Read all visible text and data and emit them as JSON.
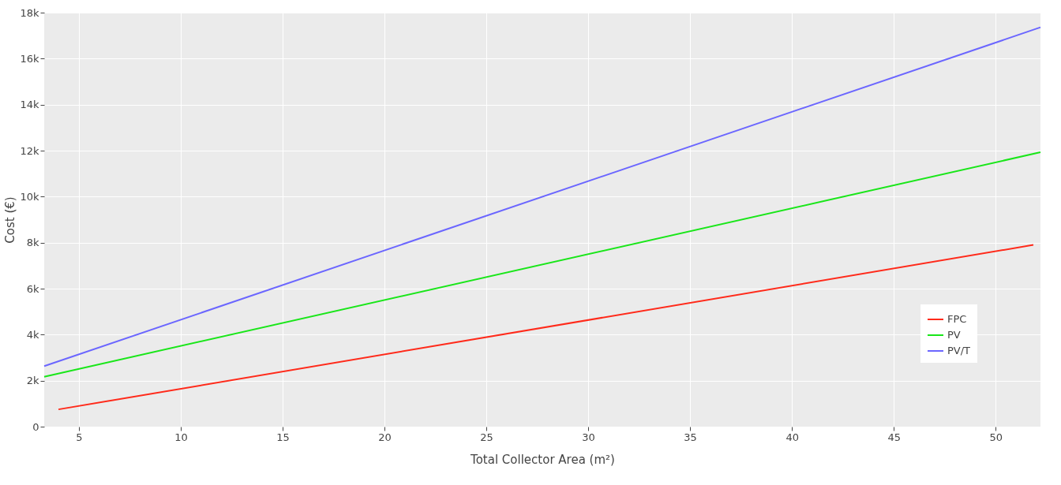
{
  "chart_data": {
    "type": "line",
    "xlabel": "Total Collector Area (m²)",
    "ylabel": "Cost (€)",
    "xlim": [
      3.3,
      52.2
    ],
    "xticks": [
      5,
      10,
      15,
      20,
      25,
      30,
      35,
      40,
      45,
      50
    ],
    "ylim": [
      0,
      18000
    ],
    "yticks": [
      {
        "value": 0,
        "label": "0"
      },
      {
        "value": 2000,
        "label": "2k"
      },
      {
        "value": 4000,
        "label": "4k"
      },
      {
        "value": 6000,
        "label": "6k"
      },
      {
        "value": 8000,
        "label": "8k"
      },
      {
        "value": 10000,
        "label": "10k"
      },
      {
        "value": 12000,
        "label": "12k"
      },
      {
        "value": 14000,
        "label": "14k"
      },
      {
        "value": 16000,
        "label": "16k"
      },
      {
        "value": 18000,
        "label": "18k"
      }
    ],
    "grid": true,
    "legend": "bottom right",
    "marker": "none",
    "line_style": "solid",
    "series": [
      {
        "name": "FPC",
        "color": "#ff2a1a",
        "x": [
          4,
          51.85
        ],
        "values": [
          750,
          7900
        ]
      },
      {
        "name": "PV",
        "color": "#19e619",
        "x": [
          3.3,
          52.2
        ],
        "values": [
          2170,
          11930
        ]
      },
      {
        "name": "PV/T",
        "color": "#6b66ff",
        "x": [
          3.3,
          52.2
        ],
        "values": [
          2630,
          17360
        ]
      }
    ]
  }
}
